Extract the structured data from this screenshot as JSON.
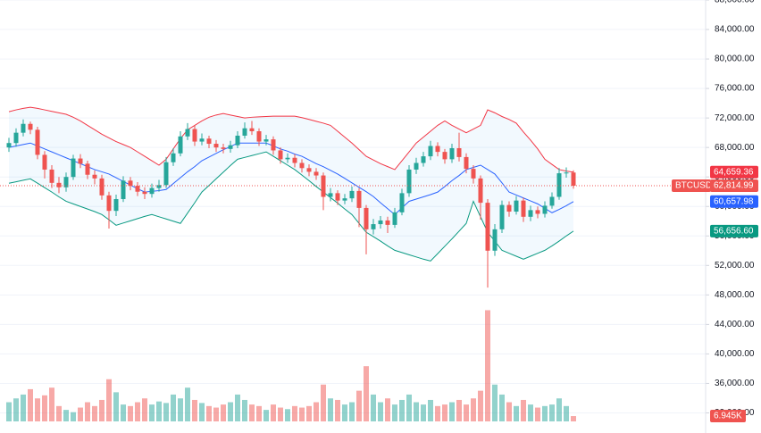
{
  "chart_data": {
    "type": "candlestick",
    "symbol": "BTCUSDT",
    "close_label": "62,814.99",
    "up_color": "#26a69a",
    "down_color": "#ef5350",
    "grid": true,
    "ylim": [
      30000,
      88000
    ],
    "yticks": [
      {
        "value": 32000,
        "label": "32,000.00"
      },
      {
        "value": 36000,
        "label": "36,000.00"
      },
      {
        "value": 40000,
        "label": "40,000.00"
      },
      {
        "value": 44000,
        "label": "44,000.00"
      },
      {
        "value": 48000,
        "label": "48,000.00"
      },
      {
        "value": 52000,
        "label": "52,000.00"
      },
      {
        "value": 56000,
        "label": "56,000.00"
      },
      {
        "value": 60000,
        "label": "60,000.00"
      },
      {
        "value": 64000,
        "label": "64,000.00"
      },
      {
        "value": 68000,
        "label": "68,000.00"
      },
      {
        "value": 72000,
        "label": "72,000.00"
      },
      {
        "value": 76000,
        "label": "76,000.00"
      },
      {
        "value": 80000,
        "label": "80,000.00"
      },
      {
        "value": 84000,
        "label": "84,000.00"
      },
      {
        "value": 88000,
        "label": "88,000.00"
      }
    ],
    "open": [
      68000,
      68600,
      70000,
      71200,
      70400,
      67000,
      65000,
      63200,
      62600,
      64000,
      66500,
      65800,
      64300,
      63800,
      61500,
      59400,
      61000,
      63500,
      62800,
      62000,
      61700,
      62500,
      62900,
      66000,
      67200,
      69500,
      70500,
      68800,
      69200,
      68500,
      68000,
      67800,
      68300,
      69600,
      70600,
      70200,
      68800,
      69100,
      67600,
      66400,
      66600,
      65900,
      65200,
      64700,
      64200,
      61300,
      61800,
      60800,
      61100,
      62100,
      59800,
      56900,
      57600,
      58100,
      57500,
      59200,
      61800,
      65000,
      65900,
      66800,
      68200,
      67400,
      66400,
      67900,
      66700,
      65100,
      63800,
      60500,
      54000,
      56900,
      60200,
      59300,
      60800,
      58600,
      59500,
      59000,
      60100,
      61300,
      64500,
      64600
    ],
    "high": [
      69300,
      70600,
      71800,
      71500,
      70800,
      67500,
      65600,
      64000,
      64600,
      67000,
      67100,
      66200,
      64900,
      64300,
      62000,
      61600,
      64100,
      64000,
      63300,
      62600,
      63100,
      63600,
      66700,
      67900,
      70200,
      71300,
      71000,
      69900,
      69600,
      69000,
      68500,
      68900,
      70200,
      71400,
      71600,
      70600,
      69700,
      69500,
      68000,
      67200,
      67100,
      66400,
      65700,
      65200,
      64600,
      62500,
      62200,
      61700,
      62700,
      62500,
      60200,
      58300,
      58700,
      58600,
      59800,
      62400,
      65600,
      66600,
      67400,
      68900,
      68700,
      67800,
      68500,
      70000,
      67200,
      65600,
      64200,
      61000,
      57600,
      60800,
      60700,
      61400,
      61200,
      60100,
      60000,
      60700,
      61900,
      65200,
      65300,
      64900
    ],
    "low": [
      67400,
      68100,
      69500,
      69800,
      66400,
      63800,
      62500,
      61800,
      62000,
      63600,
      65200,
      63700,
      63000,
      60900,
      57000,
      58700,
      60600,
      62200,
      61400,
      61000,
      61200,
      62000,
      62500,
      65500,
      66800,
      69000,
      68200,
      68300,
      67900,
      67400,
      67200,
      67300,
      67900,
      69200,
      69700,
      68200,
      68300,
      67000,
      65800,
      65900,
      65300,
      64600,
      64100,
      63600,
      59500,
      60700,
      60200,
      60300,
      60600,
      57200,
      53500,
      56200,
      57000,
      56400,
      57100,
      58800,
      61300,
      64400,
      65400,
      66300,
      66800,
      65800,
      65900,
      66100,
      64500,
      63100,
      58200,
      49000,
      53300,
      56400,
      58600,
      58900,
      57900,
      58000,
      58400,
      58500,
      59700,
      60900,
      63900,
      62400
    ],
    "close": [
      68600,
      70000,
      71200,
      70400,
      67000,
      65000,
      63200,
      62600,
      64000,
      66500,
      65800,
      64300,
      63800,
      61500,
      59400,
      61000,
      63500,
      62800,
      62000,
      61700,
      62500,
      62900,
      66000,
      67200,
      69500,
      70500,
      68800,
      69200,
      68500,
      68000,
      67800,
      68300,
      69600,
      70600,
      70200,
      68800,
      69100,
      67600,
      66400,
      66600,
      65900,
      65200,
      64700,
      64200,
      61300,
      61800,
      60800,
      61100,
      62100,
      59800,
      56900,
      57600,
      58100,
      57500,
      59200,
      61800,
      65000,
      65900,
      66800,
      68200,
      67400,
      66400,
      67900,
      66700,
      65100,
      63800,
      60500,
      54000,
      56900,
      60200,
      59300,
      60800,
      58600,
      59500,
      59000,
      60100,
      61300,
      64500,
      64600,
      62814.99
    ],
    "bands": [
      {
        "color": "#f23645",
        "last_label": "64,659.36",
        "values": [
          72850,
          73100,
          73300,
          73450,
          73300,
          73100,
          72900,
          72700,
          72500,
          72100,
          71600,
          71000,
          70400,
          69800,
          69300,
          68800,
          68400,
          68000,
          67400,
          66800,
          66200,
          65600,
          66400,
          67800,
          69200,
          70400,
          71000,
          71600,
          72100,
          72400,
          72600,
          72400,
          72200,
          72000,
          72100,
          72150,
          72200,
          72250,
          72250,
          72250,
          72250,
          72050,
          71800,
          71550,
          71300,
          71000,
          70200,
          69400,
          68600,
          67700,
          66800,
          66300,
          65800,
          65400,
          65000,
          66200,
          67400,
          68600,
          69400,
          70200,
          71000,
          71600,
          71000,
          70500,
          70000,
          70500,
          71000,
          73100,
          72700,
          72200,
          71800,
          71300,
          70100,
          69000,
          67800,
          66400,
          65700,
          65000,
          64800,
          64659.36
        ]
      },
      {
        "color": "#2962ff",
        "last_label": "60,657.98",
        "values": [
          68000,
          68200,
          68400,
          68600,
          68200,
          67800,
          67400,
          67000,
          66600,
          66200,
          65800,
          65400,
          65000,
          64700,
          64400,
          63900,
          63400,
          62900,
          62400,
          61950,
          62050,
          62150,
          62300,
          63100,
          63900,
          64700,
          65400,
          66200,
          66700,
          67200,
          67700,
          68100,
          68600,
          68600,
          68600,
          68600,
          68600,
          68200,
          67800,
          67500,
          67100,
          66800,
          66300,
          65800,
          65400,
          64900,
          64400,
          63800,
          63200,
          62600,
          62000,
          61350,
          60500,
          59700,
          58900,
          59800,
          60700,
          61000,
          61300,
          61600,
          61950,
          62700,
          63500,
          64200,
          65000,
          65300,
          65600,
          65000,
          64400,
          63200,
          61950,
          61550,
          61150,
          60750,
          60350,
          59750,
          59150,
          59600,
          60100,
          60657.98
        ]
      },
      {
        "color": "#089981",
        "last_label": "56,656.60",
        "values": [
          63150,
          63350,
          63550,
          63750,
          63150,
          62550,
          61950,
          61300,
          60700,
          60350,
          60000,
          59650,
          59300,
          58900,
          58200,
          57450,
          57750,
          58050,
          58350,
          58650,
          58900,
          58600,
          58300,
          58000,
          57700,
          59100,
          60500,
          61950,
          62850,
          63750,
          64650,
          65550,
          66400,
          66650,
          66900,
          67150,
          67400,
          66800,
          66200,
          65600,
          65000,
          64250,
          63500,
          62700,
          61950,
          61200,
          60450,
          59650,
          58900,
          57700,
          56500,
          55900,
          55300,
          54650,
          54050,
          53750,
          53450,
          53150,
          52850,
          52600,
          53600,
          54600,
          55600,
          56650,
          57700,
          60700,
          58600,
          56500,
          55300,
          54050,
          53650,
          53250,
          52850,
          53250,
          53650,
          54050,
          54650,
          55300,
          56000,
          56656.6
        ]
      }
    ],
    "volume": {
      "vlim": [
        0,
        170
      ],
      "last_label": "6.945K",
      "values": [
        25,
        30,
        35,
        42,
        30,
        34,
        44,
        20,
        15,
        12,
        18,
        25,
        20,
        28,
        55,
        38,
        22,
        20,
        25,
        30,
        22,
        26,
        24,
        35,
        30,
        44,
        28,
        24,
        20,
        18,
        22,
        25,
        35,
        28,
        22,
        20,
        15,
        22,
        18,
        16,
        20,
        18,
        20,
        25,
        48,
        30,
        28,
        22,
        25,
        40,
        72,
        35,
        25,
        30,
        22,
        28,
        35,
        25,
        22,
        28,
        20,
        22,
        25,
        28,
        22,
        30,
        40,
        145,
        48,
        35,
        25,
        20,
        28,
        22,
        18,
        20,
        22,
        30,
        20,
        6.945
      ]
    }
  }
}
